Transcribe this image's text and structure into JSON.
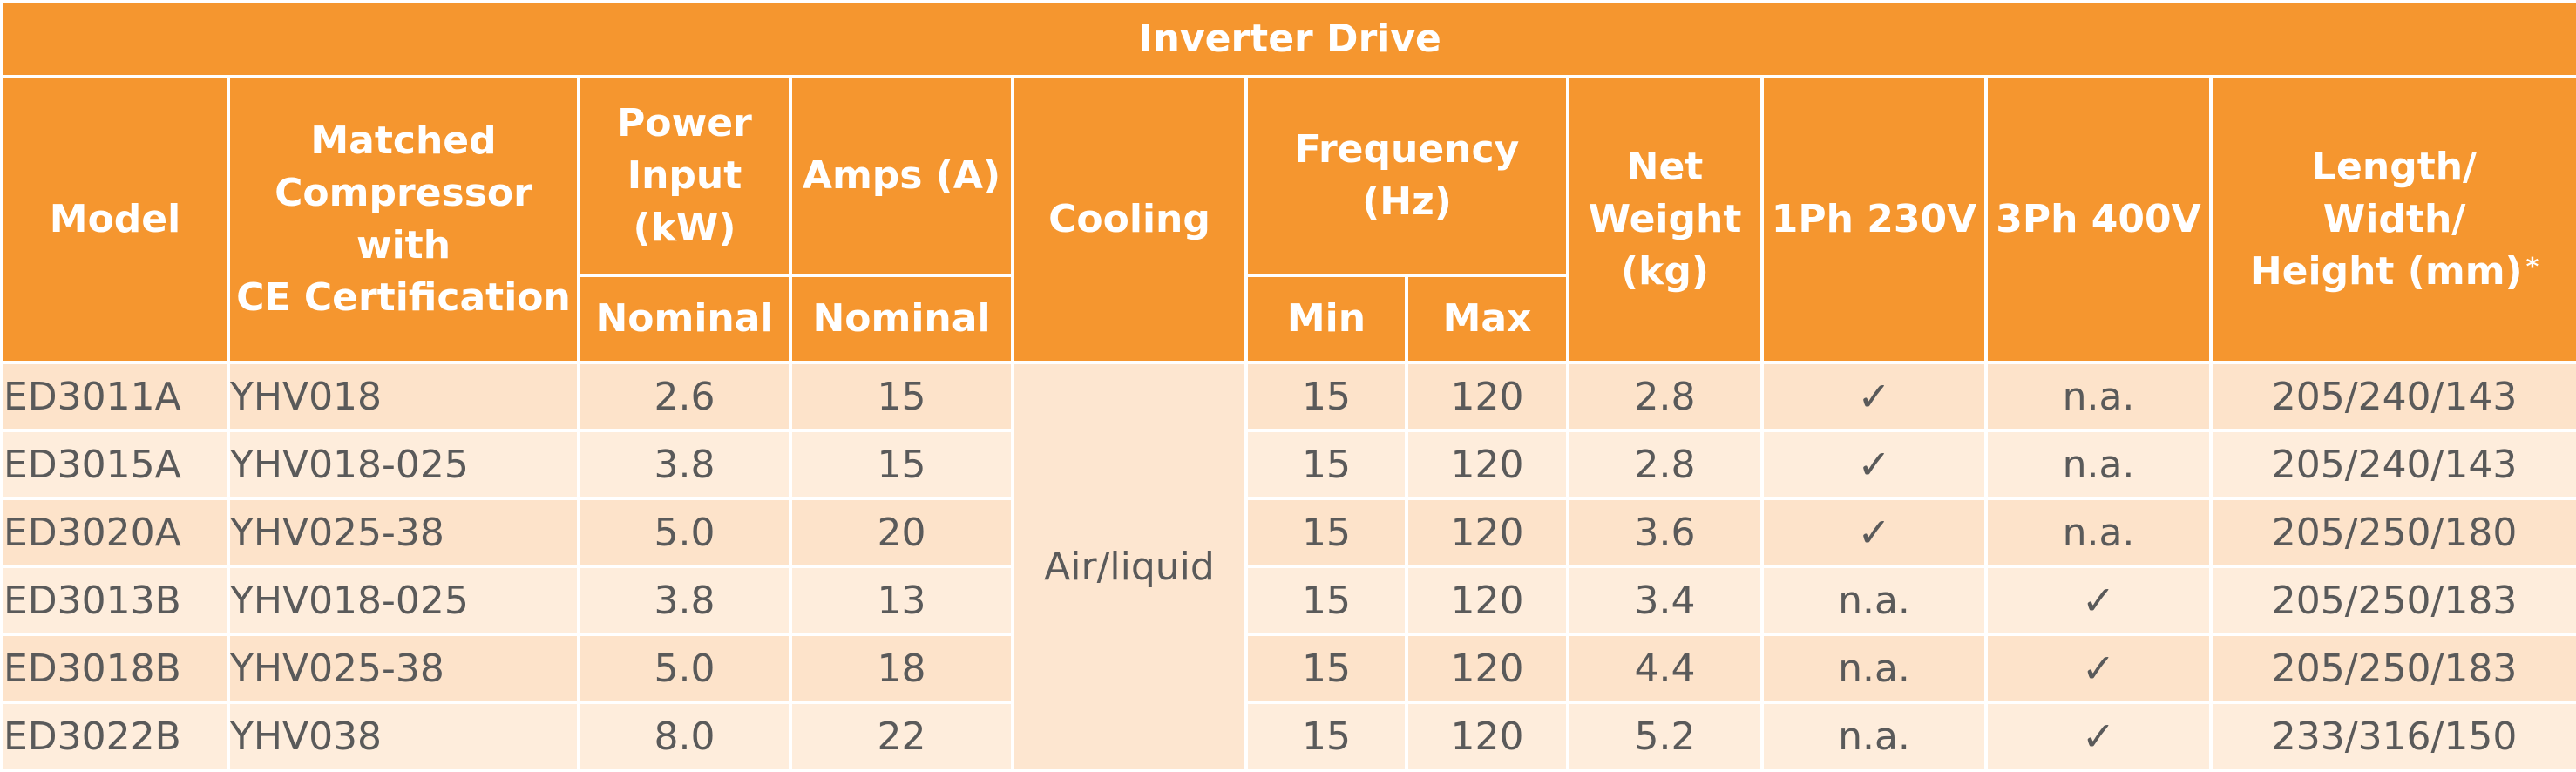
{
  "title": "Inverter Drive",
  "headers": {
    "model": "Model",
    "compressor": [
      "Matched",
      "Compressor with",
      "CE Certification"
    ],
    "power": [
      "Power",
      "Input",
      "(kW)"
    ],
    "amps": "Amps (A)",
    "cooling": "Cooling",
    "frequency": [
      "Frequency",
      "(Hz)"
    ],
    "weight": [
      "Net",
      "Weight",
      "(kg)"
    ],
    "ph1": "1Ph 230V",
    "ph3": "3Ph 400V",
    "dims": [
      "Length/",
      "Width/",
      "Height (mm)"
    ],
    "dims_note": "*",
    "power_sub": "Nominal",
    "amps_sub": "Nominal",
    "freq_min": "Min",
    "freq_max": "Max"
  },
  "cooling_value": "Air/liquid",
  "rows": [
    {
      "model": "ED3011A",
      "compressor": "YHV018",
      "power": "2.6",
      "amps": "15",
      "fmin": "15",
      "fmax": "120",
      "weight": "2.8",
      "ph1": "✓",
      "ph3": "n.a.",
      "dims": "205/240/143"
    },
    {
      "model": "ED3015A",
      "compressor": "YHV018-025",
      "power": "3.8",
      "amps": "15",
      "fmin": "15",
      "fmax": "120",
      "weight": "2.8",
      "ph1": "✓",
      "ph3": "n.a.",
      "dims": "205/240/143"
    },
    {
      "model": "ED3020A",
      "compressor": "YHV025-38",
      "power": "5.0",
      "amps": "20",
      "fmin": "15",
      "fmax": "120",
      "weight": "3.6",
      "ph1": "✓",
      "ph3": "n.a.",
      "dims": "205/250/180"
    },
    {
      "model": "ED3013B",
      "compressor": "YHV018-025",
      "power": "3.8",
      "amps": "13",
      "fmin": "15",
      "fmax": "120",
      "weight": "3.4",
      "ph1": "n.a.",
      "ph3": "✓",
      "dims": "205/250/183"
    },
    {
      "model": "ED3018B",
      "compressor": "YHV025-38",
      "power": "5.0",
      "amps": "18",
      "fmin": "15",
      "fmax": "120",
      "weight": "4.4",
      "ph1": "n.a.",
      "ph3": "✓",
      "dims": "205/250/183"
    },
    {
      "model": "ED3022B",
      "compressor": "YHV038",
      "power": "8.0",
      "amps": "22",
      "fmin": "15",
      "fmax": "120",
      "weight": "5.2",
      "ph1": "n.a.",
      "ph3": "✓",
      "dims": "233/316/150"
    }
  ],
  "colors": {
    "header_orange": "#f5962f",
    "row_odd": "#fde3ca",
    "row_even": "#feeddc",
    "text_grey": "#5a5a5a"
  }
}
